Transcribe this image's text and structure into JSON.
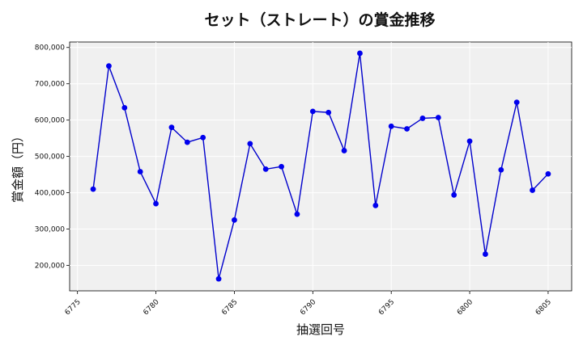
{
  "chart_data": {
    "type": "line",
    "title": "セット（ストレート）の賞金推移",
    "xlabel": "抽選回号",
    "ylabel": "賞金額（円）",
    "xlim": [
      6774.5,
      6806.5
    ],
    "ylim": [
      130000,
      815000
    ],
    "xticks": [
      6775,
      6780,
      6785,
      6790,
      6795,
      6800,
      6805
    ],
    "yticks": [
      200000,
      300000,
      400000,
      500000,
      600000,
      700000,
      800000
    ],
    "ytick_labels": [
      "200,000",
      "300,000",
      "400,000",
      "500,000",
      "600,000",
      "700,000",
      "800,000"
    ],
    "grid": true,
    "line_color": "#0000cc",
    "marker_color": "#0000ee",
    "background_color": "#f0f0f0",
    "series": [
      {
        "x": [
          6776,
          6777,
          6778,
          6779,
          6780,
          6781,
          6782,
          6783,
          6784,
          6785,
          6786,
          6787,
          6788,
          6789,
          6790,
          6791,
          6792,
          6793,
          6794,
          6795,
          6796,
          6797,
          6798,
          6799,
          6800,
          6801,
          6802,
          6803,
          6804,
          6805
        ],
        "values": [
          410000,
          749000,
          634000,
          458000,
          370000,
          580000,
          539000,
          552000,
          163000,
          325000,
          535000,
          465000,
          472000,
          341000,
          624000,
          621000,
          516000,
          784000,
          365000,
          583000,
          576000,
          605000,
          607000,
          394000,
          542000,
          231000,
          463000,
          649000,
          407000,
          452000
        ]
      }
    ]
  }
}
